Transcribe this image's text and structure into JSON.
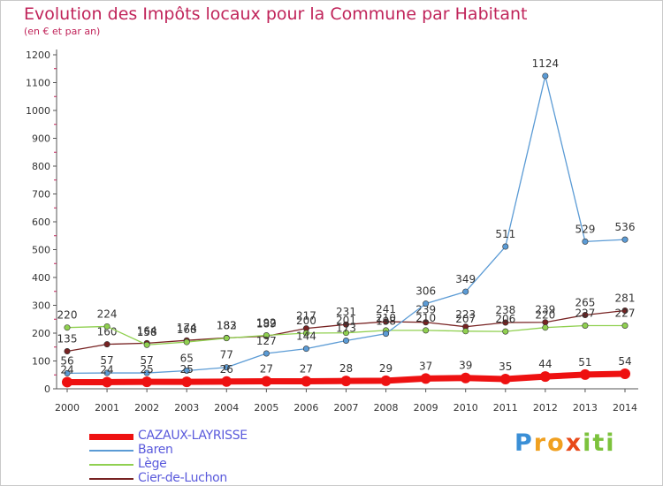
{
  "header": {
    "title": "Evolution des Impôts locaux pour la Commune par Habitant",
    "subtitle": "(en € et par an)"
  },
  "chart_data": {
    "type": "line",
    "title": "Evolution des Impôts locaux pour la Commune par Habitant",
    "subtitle": "(en € et par an)",
    "xlabel": "",
    "ylabel": "",
    "x": [
      2000,
      2001,
      2002,
      2003,
      2004,
      2005,
      2006,
      2007,
      2008,
      2009,
      2010,
      2011,
      2012,
      2013,
      2014
    ],
    "ylim": [
      0,
      1200
    ],
    "yticks": [
      0,
      100,
      200,
      300,
      400,
      500,
      600,
      700,
      800,
      900,
      1000,
      1100,
      1200
    ],
    "grid": false,
    "legend_position": "bottom-left",
    "series": [
      {
        "name": "CAZAUX-LAYRISSE",
        "color": "#ee1111",
        "values": [
          24,
          24,
          25,
          25,
          26,
          27,
          27,
          28,
          29,
          37,
          39,
          35,
          44,
          51,
          54
        ]
      },
      {
        "name": "Baren",
        "color": "#5b9bd5",
        "values": [
          56,
          57,
          57,
          65,
          77,
          127,
          144,
          173,
          198,
          306,
          349,
          511,
          1124,
          529,
          536
        ]
      },
      {
        "name": "Lège",
        "color": "#90d050",
        "values": [
          220,
          224,
          158,
          168,
          182,
          192,
          200,
          201,
          210,
          210,
          207,
          206,
          220,
          227,
          227
        ]
      },
      {
        "name": "Cier-de-Luchon",
        "color": "#772222",
        "values": [
          135,
          160,
          164,
          174,
          183,
          189,
          217,
          231,
          241,
          239,
          223,
          238,
          239,
          265,
          281
        ]
      }
    ]
  },
  "legend": {
    "items": [
      {
        "label": "CAZAUX-LAYRISSE"
      },
      {
        "label": "Baren"
      },
      {
        "label": "Lège"
      },
      {
        "label": "Cier-de-Luchon"
      }
    ]
  },
  "logo": {
    "letters": [
      {
        "char": "P",
        "color": "#3a8fd6"
      },
      {
        "char": "r",
        "color": "#f0a020"
      },
      {
        "char": "o",
        "color": "#f0a020"
      },
      {
        "char": "x",
        "color": "#e84a1a"
      },
      {
        "char": "i",
        "color": "#7cc23c"
      },
      {
        "char": "t",
        "color": "#7cc23c"
      },
      {
        "char": "i",
        "color": "#7cc23c"
      }
    ]
  }
}
